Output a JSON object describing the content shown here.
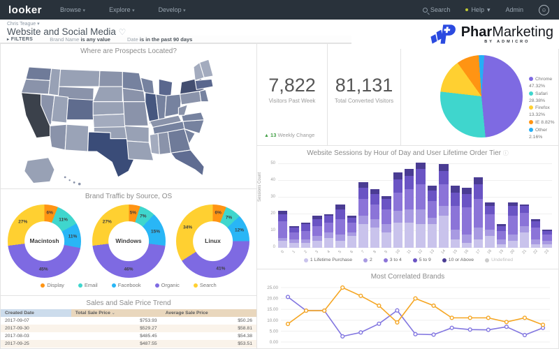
{
  "navbar": {
    "logo": "looker",
    "menus": [
      {
        "label": "Browse"
      },
      {
        "label": "Explore"
      },
      {
        "label": "Develop"
      }
    ],
    "search_label": "Search",
    "help_label": "Help",
    "admin_label": "Admin"
  },
  "header": {
    "user": "Chris Teague",
    "title": "Website and Social Media"
  },
  "filters": {
    "label": "FILTERS",
    "items": [
      {
        "field": "Brand Name",
        "condition": "is any value"
      },
      {
        "field": "Date",
        "condition": "is in the past 90 days"
      }
    ]
  },
  "branding": {
    "name_bold": "Phar",
    "name_regular": "Marketing",
    "tagline": "BY ADMICRO",
    "color": "#2b4ae0"
  },
  "kpis": [
    {
      "value": "7,822",
      "label": "Visitors Past Week",
      "change_arrow": "▲",
      "change_value": "13",
      "change_label": "Weekly Change",
      "change_color": "#43a047"
    },
    {
      "value": "81,131",
      "label": "Total Converted Visitors"
    }
  ],
  "map": {
    "title": "Where are Prospects Located?",
    "states": [
      {
        "id": "WA",
        "color": "#6f7b99"
      },
      {
        "id": "OR",
        "color": "#8a93aa"
      },
      {
        "id": "CA",
        "color": "#3b414b"
      },
      {
        "id": "NV",
        "color": "#8a93aa"
      },
      {
        "id": "ID",
        "color": "#98a1b5"
      },
      {
        "id": "MT",
        "color": "#98a1b5"
      },
      {
        "id": "WY",
        "color": "#8a93aa"
      },
      {
        "id": "UT",
        "color": "#9aa3b7"
      },
      {
        "id": "CO",
        "color": "#5f6c8e"
      },
      {
        "id": "AZ",
        "color": "#8a93aa"
      },
      {
        "id": "NM",
        "color": "#9aa3b7"
      },
      {
        "id": "ND",
        "color": "#8a93aa"
      },
      {
        "id": "SD",
        "color": "#98a1b5"
      },
      {
        "id": "NE",
        "color": "#98a1b5"
      },
      {
        "id": "KS",
        "color": "#a3abbe"
      },
      {
        "id": "OK",
        "color": "#98a1b5"
      },
      {
        "id": "TX",
        "color": "#3a4c78"
      },
      {
        "id": "MN",
        "color": "#76829f"
      },
      {
        "id": "WI",
        "color": "#76829f"
      },
      {
        "id": "MI",
        "color": "#5a678e"
      },
      {
        "id": "IA",
        "color": "#8a93aa"
      },
      {
        "id": "MO",
        "color": "#8a93aa"
      },
      {
        "id": "IL",
        "color": "#46577f"
      },
      {
        "id": "IN",
        "color": "#76829f"
      },
      {
        "id": "OH",
        "color": "#76829f"
      },
      {
        "id": "KY",
        "color": "#8a93aa"
      },
      {
        "id": "TN",
        "color": "#76829f"
      },
      {
        "id": "AR",
        "color": "#98a1b5"
      },
      {
        "id": "LA",
        "color": "#98a1b5"
      },
      {
        "id": "MS",
        "color": "#a3abbe"
      },
      {
        "id": "AL",
        "color": "#8a93aa"
      },
      {
        "id": "GA",
        "color": "#6f7b99"
      },
      {
        "id": "FL",
        "color": "#606d92"
      },
      {
        "id": "SC",
        "color": "#76829f"
      },
      {
        "id": "NC",
        "color": "#76829f"
      },
      {
        "id": "VA",
        "color": "#76829f"
      },
      {
        "id": "WV",
        "color": "#8a93aa"
      },
      {
        "id": "PA",
        "color": "#8a93aa"
      },
      {
        "id": "NY",
        "color": "#434e70"
      },
      {
        "id": "NEWENG",
        "color": "#a3abbe"
      },
      {
        "id": "MA",
        "color": "#5a678e"
      },
      {
        "id": "NJ",
        "color": "#76829f"
      },
      {
        "id": "ME",
        "color": "#a3abbe"
      },
      {
        "id": "AK",
        "color": "#98a1b5"
      },
      {
        "id": "HI",
        "color": "#8a93aa"
      }
    ]
  },
  "chart_data": [
    {
      "type": "pie",
      "title": "",
      "legend_position": "right",
      "slices": [
        {
          "label": "Chrome",
          "pct": 47.32,
          "color": "#7e6ae2"
        },
        {
          "label": "Safari",
          "pct": 28.38,
          "color": "#3fd6cd"
        },
        {
          "label": "Firefox",
          "pct": 13.32,
          "color": "#ffd031"
        },
        {
          "label": "IE",
          "pct": 8.82,
          "color": "#ff9413"
        },
        {
          "label": "Other",
          "pct": 2.16,
          "color": "#26aef5"
        }
      ]
    },
    {
      "type": "pie",
      "variant": "donut-multiples",
      "title": "Brand Traffic by Source, OS",
      "legend": [
        {
          "label": "Display",
          "color": "#ff9413"
        },
        {
          "label": "Email",
          "color": "#3fd6cd"
        },
        {
          "label": "Facebook",
          "color": "#29b6f6"
        },
        {
          "label": "Organic",
          "color": "#7e6ae2"
        },
        {
          "label": "Search",
          "color": "#ffd031"
        }
      ],
      "donuts": [
        {
          "center_label": "Macintosh",
          "values": [
            6,
            11,
            11,
            45,
            27
          ]
        },
        {
          "center_label": "Windows",
          "values": [
            5,
            7,
            15,
            46,
            27
          ]
        },
        {
          "center_label": "Linux",
          "values": [
            6,
            7,
            12,
            41,
            34
          ]
        }
      ]
    },
    {
      "type": "bar",
      "stacked": true,
      "title": "Website Sessions by Hour of Day and User Lifetime Order Tier",
      "ylabel": "Sessions Count",
      "ylim": [
        0,
        50
      ],
      "yticks": [
        0,
        10,
        20,
        30,
        40,
        50
      ],
      "categories": [
        0,
        1,
        2,
        3,
        4,
        5,
        6,
        7,
        8,
        9,
        10,
        11,
        12,
        13,
        14,
        15,
        16,
        17,
        18,
        19,
        20,
        21,
        22,
        23
      ],
      "series": [
        {
          "name": "1 Lifetime Purchase",
          "color": "#c9c3ec",
          "values": [
            4,
            3,
            3,
            4,
            6,
            4,
            7,
            14,
            12,
            9,
            15,
            15,
            14,
            14,
            19,
            5,
            3,
            5,
            7,
            2,
            4,
            9,
            2,
            2
          ]
        },
        {
          "name": "2",
          "color": "#a89ae2",
          "values": [
            2,
            2,
            2,
            3,
            3,
            4,
            2,
            5,
            5,
            5,
            7,
            8,
            9,
            4,
            6,
            6,
            5,
            7,
            4,
            3,
            4,
            4,
            3,
            2
          ]
        },
        {
          "name": "3 to 4",
          "color": "#8b74d8",
          "values": [
            10,
            4,
            5,
            6,
            6,
            9,
            6,
            10,
            9,
            9,
            11,
            12,
            15,
            10,
            13,
            14,
            16,
            17,
            9,
            5,
            11,
            8,
            7,
            4
          ]
        },
        {
          "name": "5 to 9",
          "color": "#6a54c4",
          "values": [
            4,
            3,
            4,
            4,
            4,
            6,
            3,
            7,
            6,
            6,
            8,
            8,
            9,
            6,
            8,
            8,
            8,
            9,
            5,
            3,
            6,
            4,
            4,
            2
          ]
        },
        {
          "name": "10 or Above",
          "color": "#4a3c93",
          "values": [
            2,
            1,
            1,
            2,
            1,
            3,
            1,
            3,
            3,
            2,
            4,
            4,
            4,
            3,
            4,
            4,
            4,
            4,
            2,
            1,
            2,
            1,
            1,
            1
          ]
        }
      ],
      "legend_extra": [
        {
          "name": "Undefined",
          "color": "#cccccc",
          "muted": true
        }
      ]
    },
    {
      "type": "table",
      "title": "Sales and Sale Price Trend",
      "columns": [
        "Created Date",
        "Total Sale Price",
        "Average Sale Price"
      ],
      "sort_column": "Total Sale Price",
      "rows": [
        [
          "2017-09-07",
          "$753.93",
          "$50.26"
        ],
        [
          "2017-09-30",
          "$529.27",
          "$58.81"
        ],
        [
          "2017-08-03",
          "$485.45",
          "$54.38"
        ],
        [
          "2017-09-25",
          "$487.55",
          "$53.51"
        ]
      ]
    },
    {
      "type": "line",
      "title": "Most Correlated Brands",
      "ylim": [
        0,
        25
      ],
      "yticks": [
        "25.00",
        "20.00",
        "15.00",
        "10.00",
        "5.00",
        "0.00"
      ],
      "series": [
        {
          "name": "series-purple",
          "color": "#8276e0",
          "values": [
            20.7,
            14.4,
            14.4,
            2.6,
            4.4,
            8.4,
            14.5,
            3.6,
            3.4,
            6.5,
            5.7,
            5.6,
            7.0,
            3.2,
            6.5
          ]
        },
        {
          "name": "series-orange",
          "color": "#f5a623",
          "values": [
            8.3,
            14.4,
            14.4,
            25.0,
            21.2,
            16.7,
            9.0,
            20.0,
            16.7,
            11.1,
            11.1,
            11.1,
            9.2,
            11.1,
            7.9
          ]
        }
      ]
    }
  ]
}
